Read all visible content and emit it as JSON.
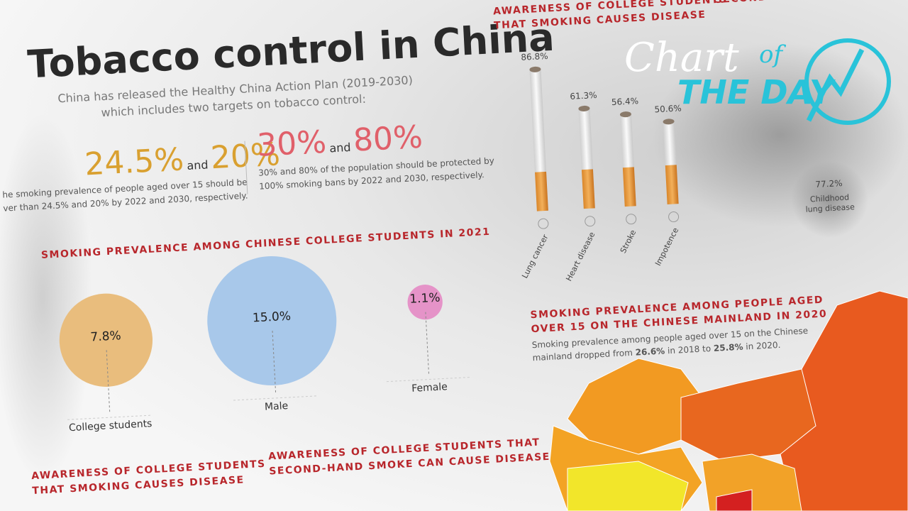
{
  "header": {
    "title": "Tobacco control in China",
    "subtitle": [
      "China has released the Healthy China Action Plan (2019-2030)",
      "which includes two targets on tobacco control:"
    ]
  },
  "targets": [
    {
      "first": "24.5%",
      "joiner": "and",
      "second": "20%",
      "text": [
        "he smoking prevalence of people aged over 15 should be",
        "ver than 24.5% and 20% by 2022 and 2030, respectively."
      ]
    },
    {
      "first": "30%",
      "joiner": "and",
      "second": "80%",
      "text": [
        "30% and 80% of the population should be protected by",
        "100% smoking bans by 2022 and 2030, respectively."
      ]
    }
  ],
  "prevalence": {
    "heading": "SMOKING PREVALENCE AMONG CHINESE COLLEGE STUDENTS IN 2021",
    "items": [
      {
        "label": "College students",
        "value": 7.8,
        "value_label": "7.8%",
        "color": "#e9bd7d"
      },
      {
        "label": "Male",
        "value": 15.0,
        "value_label": "15.0%",
        "color": "#a8c8ea"
      },
      {
        "label": "Female",
        "value": 1.1,
        "value_label": "1.1%",
        "color": "#e593c8"
      }
    ]
  },
  "bottom_headings": [
    [
      "AWARENESS OF COLLEGE STUDENTS",
      "THAT SMOKING CAUSES DISEASE"
    ],
    [
      "AWARENESS OF COLLEGE STUDENTS THAT",
      "SECOND-HAND SMOKE CAN CAUSE DISEASE"
    ]
  ],
  "disease": {
    "heading": [
      "AWARENESS OF COLLEGE STUDENTS",
      "THAT SMOKING CAUSES DISEASE"
    ],
    "items": [
      {
        "label": "Lung cancer",
        "value": 86.8,
        "value_label": "86.8%"
      },
      {
        "label": "Heart disease",
        "value": 61.3,
        "value_label": "61.3%"
      },
      {
        "label": "Stroke",
        "value": 56.4,
        "value_label": "56.4%"
      },
      {
        "label": "Impotence",
        "value": 50.6,
        "value_label": "50.6%"
      }
    ]
  },
  "secondhand": {
    "heading": "SECOND-HAND SMOKE CAN CA",
    "items": [
      {
        "value": 77.2,
        "value_label": "77.2%",
        "label": [
          "Childhood",
          "lung disease"
        ]
      }
    ]
  },
  "map": {
    "heading": [
      "SMOKING PREVALENCE AMONG PEOPLE AGED",
      "OVER 15 ON THE CHINESE MAINLAND IN 2020"
    ],
    "text": [
      "Smoking prevalence among people aged over 15 on the Chinese",
      "mainland dropped from ",
      "26.6%",
      " in 2018 to ",
      "25.8%",
      " in 2020."
    ]
  },
  "logo": {
    "chart": "Chart",
    "of": "of",
    "the_day": "THE DAY"
  }
}
